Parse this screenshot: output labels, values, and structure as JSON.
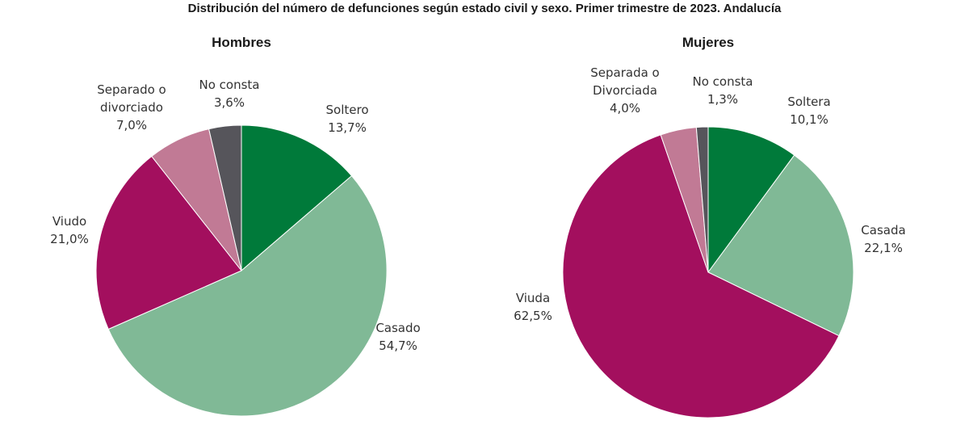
{
  "title": "Distribución del número de defunciones según estado civil y sexo. Primer trimestre de 2023. Andalucía",
  "chart_data": [
    {
      "type": "pie",
      "title": "Hombres",
      "slices": [
        {
          "label": [
            "Soltero"
          ],
          "value": 13.7,
          "value_text": "13,7%",
          "color": "#007a3a"
        },
        {
          "label": [
            "Casado"
          ],
          "value": 54.7,
          "value_text": "54,7%",
          "color": "#80b996"
        },
        {
          "label": [
            "Viudo"
          ],
          "value": 21.0,
          "value_text": "21,0%",
          "color": "#a30f5e"
        },
        {
          "label": [
            "Separado o",
            "divorciado"
          ],
          "value": 7.0,
          "value_text": "7,0%",
          "color": "#c17a95"
        },
        {
          "label": [
            "No consta"
          ],
          "value": 3.6,
          "value_text": "3,6%",
          "color": "#56555b"
        }
      ]
    },
    {
      "type": "pie",
      "title": "Mujeres",
      "slices": [
        {
          "label": [
            "Soltera"
          ],
          "value": 10.1,
          "value_text": "10,1%",
          "color": "#007a3a"
        },
        {
          "label": [
            "Casada"
          ],
          "value": 22.1,
          "value_text": "22,1%",
          "color": "#80b996"
        },
        {
          "label": [
            "Viuda"
          ],
          "value": 62.5,
          "value_text": "62,5%",
          "color": "#a30f5e"
        },
        {
          "label": [
            "Separada o",
            "Divorciada"
          ],
          "value": 4.0,
          "value_text": "4,0%",
          "color": "#c17a95"
        },
        {
          "label": [
            "No consta"
          ],
          "value": 1.3,
          "value_text": "1,3%",
          "color": "#56555b"
        }
      ]
    }
  ]
}
